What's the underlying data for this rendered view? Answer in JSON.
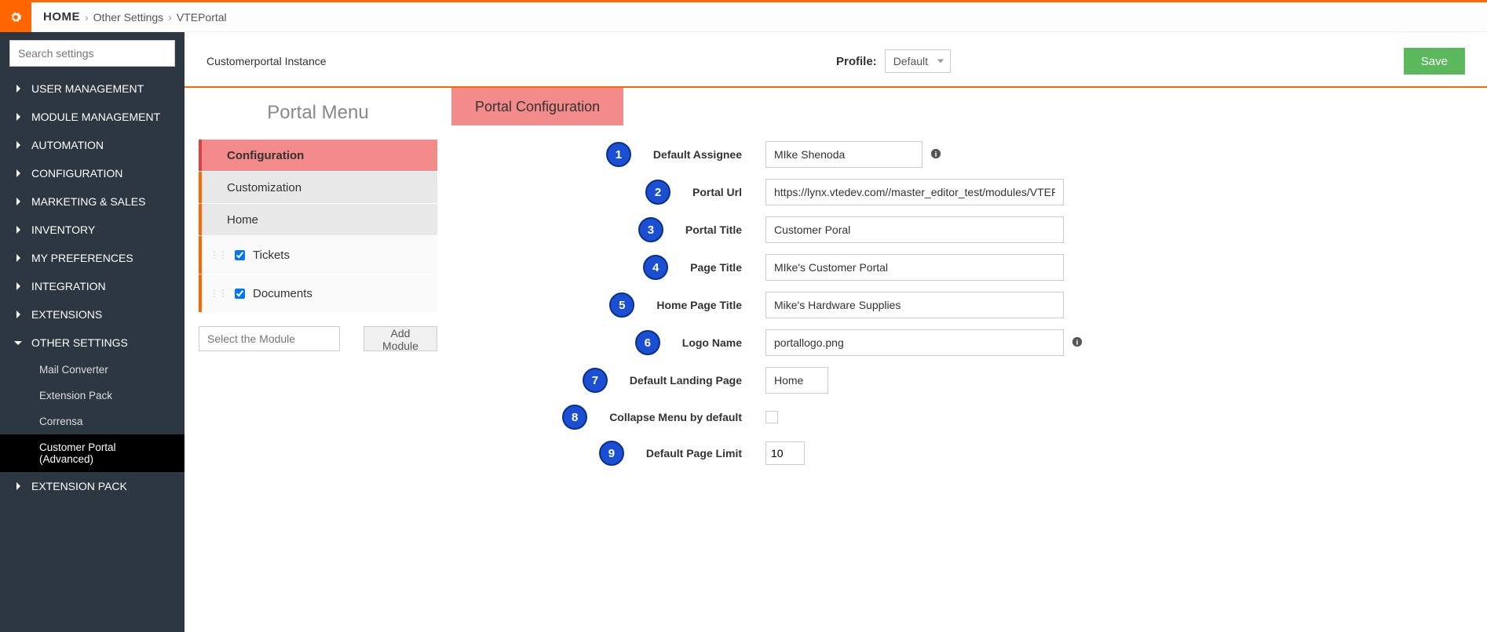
{
  "breadcrumb": {
    "home": "HOME",
    "path1": "Other Settings",
    "path2": "VTEPortal"
  },
  "sidebar": {
    "search_placeholder": "Search settings",
    "items": [
      "USER MANAGEMENT",
      "MODULE MANAGEMENT",
      "AUTOMATION",
      "CONFIGURATION",
      "MARKETING & SALES",
      "INVENTORY",
      "MY PREFERENCES",
      "INTEGRATION",
      "EXTENSIONS",
      "OTHER SETTINGS",
      "EXTENSION PACK"
    ],
    "other_settings_sub": [
      "Mail Converter",
      "Extension Pack",
      "Corrensa",
      "Customer Portal (Advanced)"
    ]
  },
  "header": {
    "instance": "Customerportal Instance",
    "profile_label": "Profile:",
    "profile_value": "Default",
    "save": "Save"
  },
  "portal_menu": {
    "title": "Portal Menu",
    "items": [
      "Configuration",
      "Customization",
      "Home"
    ],
    "checked_items": [
      "Tickets",
      "Documents"
    ],
    "select_placeholder": "Select the Module",
    "add_module": "Add Module"
  },
  "config": {
    "tab": "Portal Configuration",
    "rows": [
      {
        "n": "1",
        "label": "Default Assignee",
        "type": "select",
        "value": "MIke Shenoda",
        "info": true
      },
      {
        "n": "2",
        "label": "Portal Url",
        "type": "text",
        "value": "https://lynx.vtedev.com//master_editor_test/modules/VTEPort"
      },
      {
        "n": "3",
        "label": "Portal Title",
        "type": "text",
        "value": "Customer Poral"
      },
      {
        "n": "4",
        "label": "Page Title",
        "type": "text",
        "value": "MIke's Customer Portal"
      },
      {
        "n": "5",
        "label": "Home Page Title",
        "type": "text",
        "value": "Mike's Hardware Supplies"
      },
      {
        "n": "6",
        "label": "Logo Name",
        "type": "text",
        "value": "portallogo.png",
        "info": true
      },
      {
        "n": "7",
        "label": "Default Landing Page",
        "type": "select-small",
        "value": "Home"
      },
      {
        "n": "8",
        "label": "Collapse Menu by default",
        "type": "checkbox",
        "value": ""
      },
      {
        "n": "9",
        "label": "Default Page Limit",
        "type": "number",
        "value": "10"
      }
    ]
  }
}
